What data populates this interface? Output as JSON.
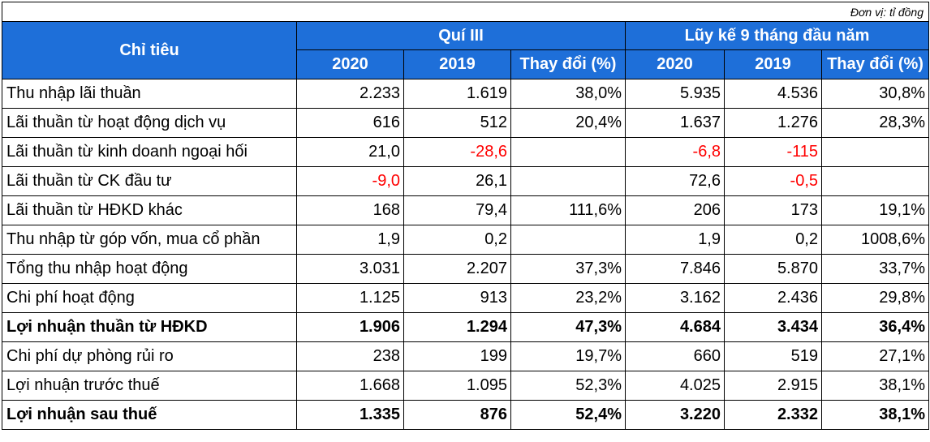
{
  "unit_note": "Đơn vị: tỉ đồng",
  "header": {
    "indicator": "Chỉ tiêu",
    "group_q3": "Quí III",
    "group_9m": "Lũy kế 9 tháng đầu năm",
    "sub": [
      "2020",
      "2019",
      "Thay đổi (%)",
      "2020",
      "2019",
      "Thay đổi (%)"
    ]
  },
  "rows": [
    {
      "label": "Thu nhập lãi thuần",
      "bold": false,
      "cells": [
        "2.233",
        "1.619",
        "38,0%",
        "5.935",
        "4.536",
        "30,8%"
      ]
    },
    {
      "label": "Lãi thuần từ hoạt động dịch vụ",
      "bold": false,
      "cells": [
        "616",
        "512",
        "20,4%",
        "1.637",
        "1.276",
        "28,3%"
      ]
    },
    {
      "label": "Lãi thuần từ kinh doanh ngoại hối",
      "bold": false,
      "cells": [
        "21,0",
        "-28,6",
        "",
        "-6,8",
        "-115",
        ""
      ]
    },
    {
      "label": "Lãi thuần từ CK đầu tư",
      "bold": false,
      "cells": [
        "-9,0",
        "26,1",
        "",
        "72,6",
        "-0,5",
        ""
      ]
    },
    {
      "label": "Lãi thuần từ HĐKD khác",
      "bold": false,
      "cells": [
        "168",
        "79,4",
        "111,6%",
        "206",
        "173",
        "19,1%"
      ]
    },
    {
      "label": "Thu nhập từ góp vốn, mua cổ phần",
      "bold": false,
      "cells": [
        "1,9",
        "0,2",
        "",
        "1,9",
        "0,2",
        "1008,6%"
      ]
    },
    {
      "label": "Tổng thu nhập hoạt động",
      "bold": false,
      "cells": [
        "3.031",
        "2.207",
        "37,3%",
        "7.846",
        "5.870",
        "33,7%"
      ]
    },
    {
      "label": "Chi phí hoạt động",
      "bold": false,
      "cells": [
        "1.125",
        "913",
        "23,2%",
        "3.162",
        "2.436",
        "29,8%"
      ]
    },
    {
      "label": "Lợi nhuận thuần từ HĐKD",
      "bold": true,
      "cells": [
        "1.906",
        "1.294",
        "47,3%",
        "4.684",
        "3.434",
        "36,4%"
      ]
    },
    {
      "label": "Chi phí dự phòng rủi ro",
      "bold": false,
      "cells": [
        "238",
        "199",
        "19,7%",
        "660",
        "519",
        "27,1%"
      ]
    },
    {
      "label": "Lợi nhuận trước thuế",
      "bold": false,
      "cells": [
        "1.668",
        "1.095",
        "52,3%",
        "4.025",
        "2.915",
        "38,1%"
      ]
    },
    {
      "label": "Lợi nhuận sau thuế",
      "bold": true,
      "cells": [
        "1.335",
        "876",
        "52,4%",
        "3.220",
        "2.332",
        "38,1%"
      ]
    }
  ]
}
